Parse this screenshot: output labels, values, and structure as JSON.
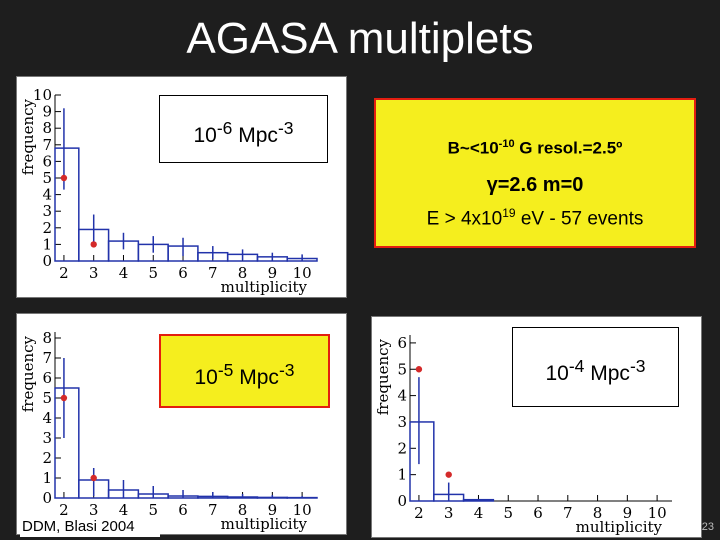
{
  "slide_title": "AGASA multiplets",
  "footer": "DDM, Blasi 2004",
  "page_number": "23",
  "info_box": {
    "line1": "B~<10-10 G   resol.=2.5º",
    "line2": "γ=2.6   m=0",
    "line3": "E > 4x1019 eV - 57 events"
  },
  "colors": {
    "histogram": "#2233aa",
    "dots": "#d42a2a",
    "info_bg": "#f5ee1e",
    "info_border": "#e31e10"
  },
  "chart_data": [
    {
      "type": "bar",
      "density_label": "10-6 Mpc-3",
      "xlabel": "multiplicity",
      "ylabel": "frequency",
      "xticks": [
        "2",
        "3",
        "4",
        "5",
        "6",
        "7",
        "8",
        "9",
        "10"
      ],
      "yticks": [
        "0",
        "1",
        "2",
        "3",
        "4",
        "5",
        "6",
        "7",
        "8",
        "9",
        "10"
      ],
      "xlim": [
        1.7,
        10.5
      ],
      "ylim": [
        0,
        10
      ],
      "hist_edges": [
        1.7,
        2.5,
        3.5,
        4.5,
        5.5,
        6.5,
        7.5,
        8.5,
        9.5,
        10.5
      ],
      "hist_values": [
        6.8,
        1.9,
        1.2,
        1.0,
        0.9,
        0.5,
        0.4,
        0.25,
        0.15
      ],
      "error_bars": [
        [
          2,
          4.3,
          9.2
        ],
        [
          3,
          1.0,
          2.8
        ],
        [
          4,
          0.7,
          1.7
        ],
        [
          5,
          0.5,
          1.5
        ],
        [
          6,
          0.3,
          1.4
        ],
        [
          7,
          0.1,
          0.9
        ],
        [
          8,
          0.05,
          0.7
        ],
        [
          9,
          0.0,
          0.5
        ],
        [
          10,
          0.0,
          0.4
        ]
      ],
      "observed": [
        {
          "x": 2,
          "y": 5
        },
        {
          "x": 3,
          "y": 1
        }
      ]
    },
    {
      "type": "bar",
      "density_label": "10-5 Mpc-3",
      "xlabel": "multiplicity",
      "ylabel": "frequency",
      "xticks": [
        "2",
        "3",
        "4",
        "5",
        "6",
        "7",
        "8",
        "9",
        "10"
      ],
      "yticks": [
        "0",
        "1",
        "2",
        "3",
        "4",
        "5",
        "6",
        "7",
        "8"
      ],
      "xlim": [
        1.7,
        10.5
      ],
      "ylim": [
        0,
        8.3
      ],
      "hist_edges": [
        1.7,
        2.5,
        3.5,
        4.5,
        5.5,
        6.5,
        7.5,
        8.5,
        9.5,
        10.5
      ],
      "hist_values": [
        5.5,
        0.9,
        0.4,
        0.2,
        0.1,
        0.08,
        0.05,
        0.03,
        0.02
      ],
      "error_bars": [
        [
          2,
          3.0,
          7.0
        ],
        [
          3,
          0.1,
          1.5
        ],
        [
          4,
          0.0,
          0.9
        ],
        [
          5,
          0.0,
          0.6
        ],
        [
          6,
          0.0,
          0.4
        ],
        [
          7,
          0.0,
          0.3
        ],
        [
          8,
          0.0,
          0.2
        ],
        [
          9,
          0.0,
          0.15
        ],
        [
          10,
          0.0,
          0.1
        ]
      ],
      "observed": [
        {
          "x": 2,
          "y": 5
        },
        {
          "x": 3,
          "y": 1
        }
      ]
    },
    {
      "type": "bar",
      "density_label": "10-4 Mpc-3",
      "xlabel": "multiplicity",
      "ylabel": "frequency",
      "xticks": [
        "2",
        "3",
        "4",
        "5",
        "6",
        "7",
        "8",
        "9",
        "10"
      ],
      "yticks": [
        "0",
        "1",
        "2",
        "3",
        "4",
        "5",
        "6"
      ],
      "xlim": [
        1.7,
        10.5
      ],
      "ylim": [
        0,
        6.3
      ],
      "hist_edges": [
        1.7,
        2.5,
        3.5,
        4.5,
        5.5,
        6.5,
        7.5,
        8.5,
        9.5,
        10.5
      ],
      "hist_values": [
        3.0,
        0.25,
        0.05,
        0.0,
        0.0,
        0.0,
        0.0,
        0.0,
        0.0
      ],
      "error_bars": [
        [
          2,
          1.4,
          4.7
        ],
        [
          3,
          0.0,
          0.7
        ]
      ],
      "observed": [
        {
          "x": 2,
          "y": 5
        },
        {
          "x": 3,
          "y": 1
        }
      ]
    }
  ]
}
